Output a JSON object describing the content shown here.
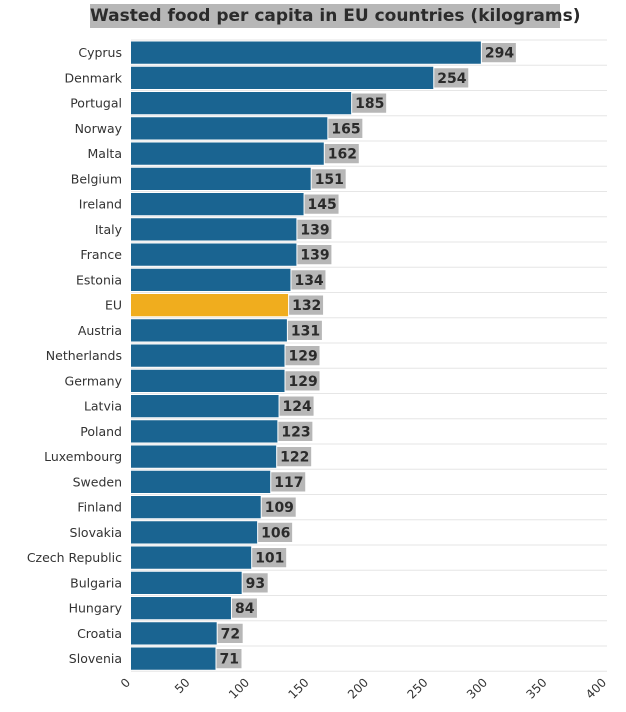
{
  "chart_data": {
    "type": "bar",
    "orientation": "horizontal",
    "title": "Wasted food per capita in EU countries (kilograms)",
    "categories": [
      "Cyprus",
      "Denmark",
      "Portugal",
      "Norway",
      "Malta",
      "Belgium",
      "Ireland",
      "Italy",
      "France",
      "Estonia",
      "EU",
      "Austria",
      "Netherlands",
      "Germany",
      "Latvia",
      "Poland",
      "Luxembourg",
      "Sweden",
      "Finland",
      "Slovakia",
      "Czech Republic",
      "Bulgaria",
      "Hungary",
      "Croatia",
      "Slovenia"
    ],
    "values": [
      294,
      254,
      185,
      165,
      162,
      151,
      145,
      139,
      139,
      134,
      132,
      131,
      129,
      129,
      124,
      123,
      122,
      117,
      109,
      106,
      101,
      93,
      84,
      72,
      71
    ],
    "highlight": "EU",
    "colors": {
      "bar": "#1a6491",
      "highlight": "#f0ad1e",
      "label_bg": "#b7b7b7",
      "grid": "#e6e6e6"
    },
    "xlim": [
      0,
      400
    ],
    "xticks": [
      0,
      50,
      100,
      150,
      200,
      250,
      300,
      350,
      400
    ],
    "grid": true,
    "legend": "none"
  }
}
